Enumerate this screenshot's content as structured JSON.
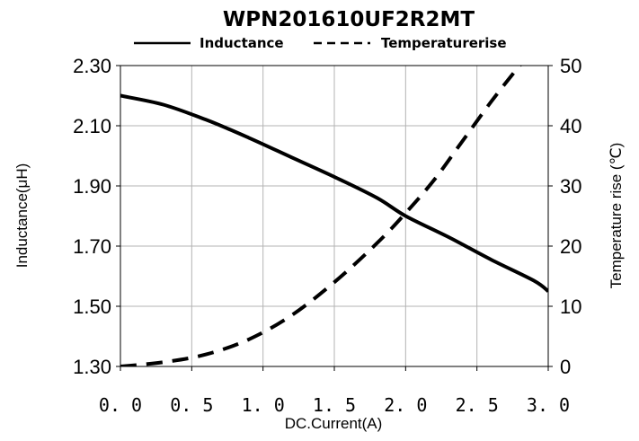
{
  "chart_data": {
    "type": "line",
    "title": "WPN201610UF2R2MT",
    "xlabel": "DC.Current(A)",
    "ylabel": "Inductance(μH)",
    "y2label": "Temperature rise (℃)",
    "xlim": [
      0,
      3.0
    ],
    "ylim": [
      1.3,
      2.3
    ],
    "y2lim": [
      0,
      50
    ],
    "x_ticks": [
      "0. 0",
      "0. 5",
      "1. 0",
      "1. 5",
      "2. 0",
      "2. 5",
      "3. 0"
    ],
    "y_ticks": [
      "1.30",
      "1.50",
      "1.70",
      "1.90",
      "2.10",
      "2.30"
    ],
    "y2_ticks": [
      "0",
      "10",
      "20",
      "30",
      "40",
      "50"
    ],
    "grid": true,
    "legend_position": "top",
    "series": [
      {
        "name": "Inductance",
        "axis": "left",
        "style": "solid",
        "x": [
          0,
          0.3,
          0.6,
          0.9,
          1.2,
          1.5,
          1.8,
          2.0,
          2.3,
          2.6,
          2.9,
          3.0
        ],
        "y": [
          2.2,
          2.17,
          2.12,
          2.06,
          1.995,
          1.93,
          1.86,
          1.8,
          1.73,
          1.655,
          1.585,
          1.55
        ]
      },
      {
        "name": "Temperaturerise",
        "axis": "right",
        "style": "dashed",
        "x": [
          0,
          0.3,
          0.6,
          0.9,
          1.2,
          1.5,
          1.8,
          2.0,
          2.2,
          2.4,
          2.6,
          2.8,
          2.85
        ],
        "y": [
          0,
          0.7,
          2.0,
          4.5,
          8.5,
          14,
          20.5,
          25.5,
          31,
          37.5,
          44,
          50,
          51
        ]
      }
    ]
  }
}
